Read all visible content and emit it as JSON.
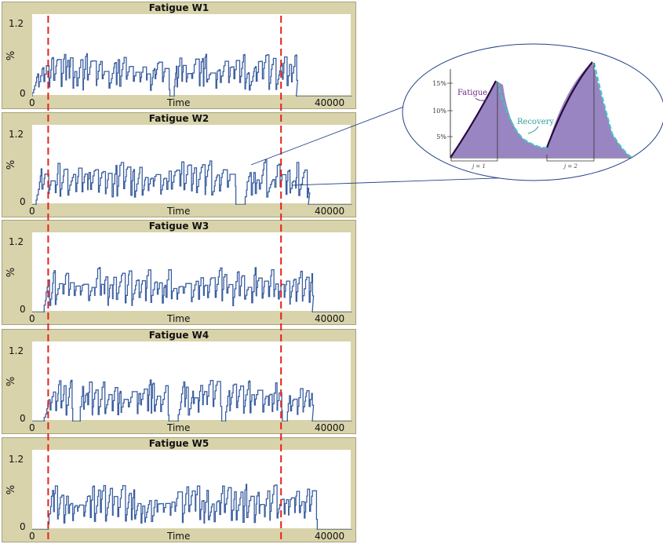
{
  "chart_data": [
    {
      "type": "line",
      "title": "Fatigue W1",
      "xlabel": "Time",
      "ylabel": "%",
      "xlim": [
        0,
        40000
      ],
      "ylim": [
        0,
        1.2
      ],
      "x_tick_labels": [
        "0",
        "40000"
      ],
      "y_tick_labels": [
        "0",
        "1.2"
      ],
      "active_range": [
        0,
        33000
      ],
      "peak": 0.6,
      "grid": false
    },
    {
      "type": "line",
      "title": "Fatigue W2",
      "xlabel": "Time",
      "ylabel": "%",
      "xlim": [
        0,
        40000
      ],
      "ylim": [
        0,
        1.2
      ],
      "x_tick_labels": [
        "0",
        "40000"
      ],
      "y_tick_labels": [
        "0",
        "1.2"
      ],
      "active_range": [
        500,
        34500
      ],
      "peak": 0.65,
      "grid": false
    },
    {
      "type": "line",
      "title": "Fatigue W3",
      "xlabel": "Time",
      "ylabel": "%",
      "xlim": [
        0,
        40000
      ],
      "ylim": [
        0,
        1.2
      ],
      "x_tick_labels": [
        "0",
        "40000"
      ],
      "y_tick_labels": [
        "0",
        "1.2"
      ],
      "active_range": [
        1500,
        35000
      ],
      "peak": 0.65,
      "grid": false
    },
    {
      "type": "line",
      "title": "Fatigue W4",
      "xlabel": "Time",
      "ylabel": "%",
      "xlim": [
        0,
        40000
      ],
      "ylim": [
        0,
        1.2
      ],
      "x_tick_labels": [
        "0",
        "40000"
      ],
      "y_tick_labels": [
        "0",
        "1.2"
      ],
      "active_range": [
        1500,
        35000
      ],
      "peak": 0.6,
      "grid": false
    },
    {
      "type": "line",
      "title": "Fatigue W5",
      "xlabel": "Time",
      "ylabel": "%",
      "xlim": [
        0,
        40000
      ],
      "ylim": [
        0,
        1.2
      ],
      "x_tick_labels": [
        "0",
        "40000"
      ],
      "y_tick_labels": [
        "0",
        "1.2"
      ],
      "active_range": [
        2000,
        36000
      ],
      "peak": 0.65,
      "grid": false
    }
  ],
  "markers": {
    "times": [
      2100,
      31200
    ],
    "color": "#e8201c",
    "style": "dashed"
  },
  "inset": {
    "y_tick_labels": [
      "15%",
      "10%",
      "5%"
    ],
    "annotations": [
      "Fatigue",
      "Recovery"
    ],
    "interval_labels": [
      "j = 1",
      "j = 2"
    ],
    "colors": {
      "fill": "#9985c2",
      "fatigue_line": "#2a0a3e",
      "recovery_line": "#3fc6c2",
      "fatigue_text": "#6c2b8c",
      "recovery_text": "#2b9e9a"
    }
  },
  "colors": {
    "series": "#3a5fa0",
    "panel_bg": "#d8d3aa",
    "plot_bg": "#ffffff"
  }
}
